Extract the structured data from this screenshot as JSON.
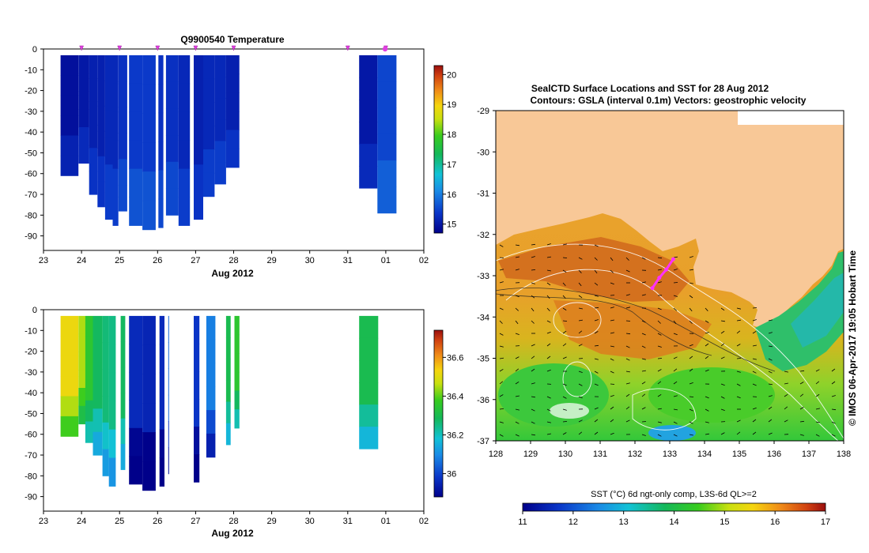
{
  "chart_data": [
    {
      "type": "heatmap",
      "panel": "temperature-profile",
      "title": "Q9900540  Temperature",
      "xlabel": "Aug 2012",
      "x_ticks": [
        "23",
        "24",
        "25",
        "26",
        "27",
        "28",
        "29",
        "30",
        "31",
        "01",
        "02"
      ],
      "y_ticks": [
        "0",
        "-10",
        "-20",
        "-30",
        "-40",
        "-50",
        "-60",
        "-70",
        "-80",
        "-90"
      ],
      "ylim": [
        -97,
        0
      ],
      "colorbar": {
        "ticks": [
          "15",
          "16",
          "17",
          "18",
          "19",
          "20"
        ],
        "range": [
          14.7,
          20.3
        ]
      },
      "profile_markers_day": [
        24.0,
        25.0,
        26.0,
        27.0,
        28.0,
        31.0,
        32.0
      ],
      "profiles": [
        {
          "x0": 23.45,
          "x1": 23.92,
          "depth": -61,
          "value": 14.9
        },
        {
          "x0": 23.92,
          "x1": 24.2,
          "depth": -55,
          "value": 15.0
        },
        {
          "x0": 24.2,
          "x1": 24.42,
          "depth": -70,
          "value": 15.1
        },
        {
          "x0": 24.42,
          "x1": 24.62,
          "depth": -76,
          "value": 15.1
        },
        {
          "x0": 24.62,
          "x1": 24.82,
          "depth": -82,
          "value": 15.2
        },
        {
          "x0": 24.82,
          "x1": 24.97,
          "depth": -85,
          "value": 15.2
        },
        {
          "x0": 24.97,
          "x1": 25.2,
          "depth": -78,
          "value": 15.3
        },
        {
          "x0": 25.25,
          "x1": 25.6,
          "depth": -85,
          "value": 15.4
        },
        {
          "x0": 25.6,
          "x1": 25.95,
          "depth": -87,
          "value": 15.4
        },
        {
          "x0": 26.02,
          "x1": 26.15,
          "depth": -86,
          "value": 15.3
        },
        {
          "x0": 26.22,
          "x1": 26.55,
          "depth": -80,
          "value": 15.3
        },
        {
          "x0": 26.55,
          "x1": 26.85,
          "depth": -85,
          "value": 15.2
        },
        {
          "x0": 26.95,
          "x1": 27.2,
          "depth": -82,
          "value": 15.1
        },
        {
          "x0": 27.2,
          "x1": 27.5,
          "depth": -71,
          "value": 15.2
        },
        {
          "x0": 27.5,
          "x1": 27.8,
          "depth": -65,
          "value": 15.2
        },
        {
          "x0": 27.8,
          "x1": 28.15,
          "depth": -57,
          "value": 15.1
        },
        {
          "x0": 31.3,
          "x1": 31.78,
          "depth": -67,
          "value": 15.0
        },
        {
          "x0": 31.78,
          "x1": 32.28,
          "depth": -79,
          "value": 15.5
        }
      ]
    },
    {
      "type": "heatmap",
      "panel": "salinity-profile",
      "title": "",
      "xlabel": "Aug 2012",
      "x_ticks": [
        "23",
        "24",
        "25",
        "26",
        "27",
        "28",
        "29",
        "30",
        "31",
        "01",
        "02"
      ],
      "y_ticks": [
        "0",
        "-10",
        "-20",
        "-30",
        "-40",
        "-50",
        "-60",
        "-70",
        "-80",
        "-90"
      ],
      "ylim": [
        -97,
        0
      ],
      "colorbar": {
        "ticks": [
          "36",
          "36.2",
          "36.4",
          "36.6"
        ],
        "range": [
          35.88,
          36.74
        ]
      },
      "profiles": [
        {
          "x0": 23.45,
          "x1": 23.92,
          "depth": -61,
          "value": 36.52
        },
        {
          "x0": 23.92,
          "x1": 24.1,
          "depth": -55,
          "value": 36.45
        },
        {
          "x0": 24.1,
          "x1": 24.3,
          "depth": -64,
          "value": 36.35
        },
        {
          "x0": 24.3,
          "x1": 24.55,
          "depth": -70,
          "value": 36.28
        },
        {
          "x0": 24.55,
          "x1": 24.72,
          "depth": -80,
          "value": 36.26
        },
        {
          "x0": 24.72,
          "x1": 24.9,
          "depth": -85,
          "value": 36.25
        },
        {
          "x0": 25.03,
          "x1": 25.15,
          "depth": -77,
          "value": 36.28
        },
        {
          "x0": 25.25,
          "x1": 25.6,
          "depth": -84,
          "value": 35.96
        },
        {
          "x0": 25.6,
          "x1": 25.95,
          "depth": -87,
          "value": 35.95
        },
        {
          "x0": 26.05,
          "x1": 26.18,
          "depth": -85,
          "value": 35.96
        },
        {
          "x0": 26.28,
          "x1": 26.3,
          "depth": -79,
          "value": 36.05
        },
        {
          "x0": 26.95,
          "x1": 27.1,
          "depth": -83,
          "value": 35.98
        },
        {
          "x0": 27.28,
          "x1": 27.52,
          "depth": -71,
          "value": 36.08
        },
        {
          "x0": 27.8,
          "x1": 27.92,
          "depth": -65,
          "value": 36.3
        },
        {
          "x0": 28.02,
          "x1": 28.15,
          "depth": -57,
          "value": 36.35
        },
        {
          "x0": 31.3,
          "x1": 31.8,
          "depth": -67,
          "value": 36.3
        }
      ]
    },
    {
      "type": "heatmap",
      "panel": "sst-map",
      "title": "SealCTD Surface Locations and SST for 28 Aug 2012",
      "subtitle": "Contours: GSLA (interval 0.1m) Vectors: geostrophic velocity",
      "x_ticks": [
        "128",
        "129",
        "130",
        "131",
        "132",
        "133",
        "134",
        "135",
        "136",
        "137",
        "138"
      ],
      "y_ticks": [
        "-29",
        "-30",
        "-31",
        "-32",
        "-33",
        "-34",
        "-35",
        "-36",
        "-37"
      ],
      "xlim": [
        128,
        138
      ],
      "ylim": [
        -37,
        -29
      ],
      "colorbar_label": "SST (°C) 6d ngt-only comp, L3S-6d QL>=2",
      "colorbar": {
        "ticks": [
          "11",
          "12",
          "13",
          "14",
          "15",
          "16",
          "17"
        ],
        "range": [
          11,
          17
        ]
      },
      "track_lonlat": [
        [
          132.5,
          -33.3
        ],
        [
          132.7,
          -33.05
        ],
        [
          132.9,
          -32.85
        ],
        [
          133.1,
          -32.6
        ]
      ],
      "side_caption": "© IMOS 06-Apr-2017 19:05 Hobart Time"
    }
  ]
}
